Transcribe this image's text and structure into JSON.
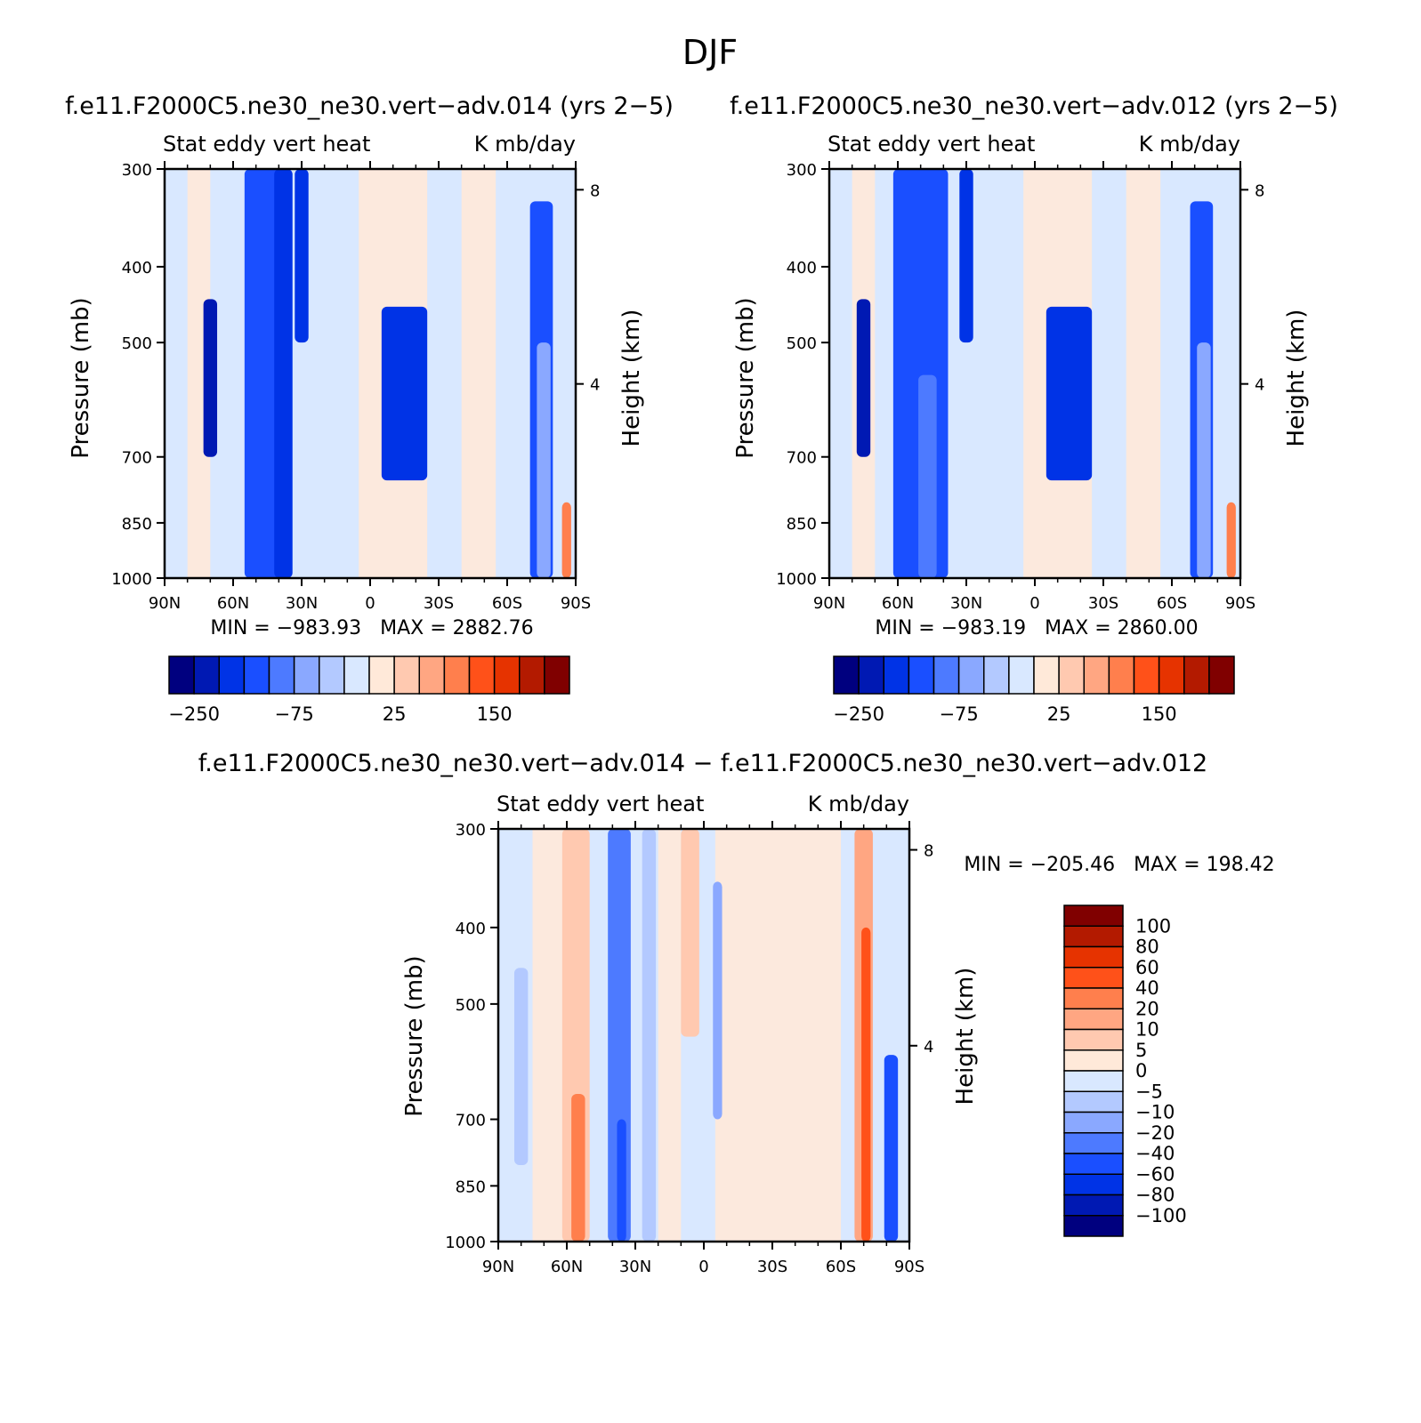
{
  "figure_title": "DJF",
  "palette": {
    "full": [
      "#00007f",
      "#0019b3",
      "#0033e6",
      "#1a4fff",
      "#4d7aff",
      "#8aa8ff",
      "#b3c9ff",
      "#d9e8ff",
      "#ffe9d9",
      "#ffc9b0",
      "#ffa682",
      "#ff7f4d",
      "#ff5119",
      "#e63300",
      "#b31a00",
      "#800000"
    ]
  },
  "chart_data": [
    {
      "id": "panel-014",
      "type": "heatmap",
      "title": "f.e11.F2000C5.ne30_ne30.vert−adv.014 (yrs 2−5)",
      "left_label": "Stat eddy vert heat",
      "right_label": "K mb/day",
      "ylabel": "Pressure (mb)",
      "ylabel_right": "Height (km)",
      "x_ticks": [
        "90N",
        "60N",
        "30N",
        "0",
        "30S",
        "60S",
        "90S"
      ],
      "x_values": [
        90,
        60,
        30,
        0,
        -30,
        -60,
        -90
      ],
      "xlim": [
        90,
        -90
      ],
      "y_ticks": [
        "300",
        "400",
        "500",
        "700",
        "850",
        "1000"
      ],
      "y_values": [
        300,
        400,
        500,
        700,
        850,
        1000
      ],
      "ylim": [
        300,
        1000
      ],
      "y_right_ticks": [
        "8",
        "4"
      ],
      "y_right_km": [
        8,
        4
      ],
      "stats": "MIN = −983.93   MAX = 2882.76",
      "colorbar_levels": [
        "−250",
        "−75",
        "25",
        "150"
      ],
      "features": [
        {
          "lat": 46,
          "w": 9,
          "p_top": 300,
          "p_bot": 1000,
          "v": 3
        },
        {
          "lat": 38,
          "w": 4,
          "p_top": 300,
          "p_bot": 1000,
          "v": 2
        },
        {
          "lat": 30,
          "w": 3,
          "p_top": 300,
          "p_bot": 500,
          "v": 2
        },
        {
          "lat": 70,
          "w": 3,
          "p_top": 440,
          "p_bot": 700,
          "v": 1
        },
        {
          "lat": -15,
          "w": 10,
          "p_top": 450,
          "p_bot": 750,
          "v": 2
        },
        {
          "lat": -75,
          "w": 5,
          "p_top": 330,
          "p_bot": 1000,
          "v": 3
        },
        {
          "lat": -76,
          "w": 3,
          "p_top": 500,
          "p_bot": 1000,
          "v": 5
        },
        {
          "lat": -86,
          "w": 2,
          "p_top": 800,
          "p_bot": 1000,
          "v": 11
        }
      ]
    },
    {
      "id": "panel-012",
      "type": "heatmap",
      "title": "f.e11.F2000C5.ne30_ne30.vert−adv.012 (yrs 2−5)",
      "left_label": "Stat eddy vert heat",
      "right_label": "K mb/day",
      "ylabel": "Pressure (mb)",
      "ylabel_right": "Height (km)",
      "x_ticks": [
        "90N",
        "60N",
        "30N",
        "0",
        "30S",
        "60S",
        "90S"
      ],
      "x_values": [
        90,
        60,
        30,
        0,
        -30,
        -60,
        -90
      ],
      "xlim": [
        90,
        -90
      ],
      "y_ticks": [
        "300",
        "400",
        "500",
        "700",
        "850",
        "1000"
      ],
      "y_values": [
        300,
        400,
        500,
        700,
        850,
        1000
      ],
      "ylim": [
        300,
        1000
      ],
      "y_right_ticks": [
        "8",
        "4"
      ],
      "y_right_km": [
        8,
        4
      ],
      "stats": "MIN = −983.19   MAX = 2860.00",
      "colorbar_levels": [
        "−250",
        "−75",
        "25",
        "150"
      ],
      "features": [
        {
          "lat": 50,
          "w": 12,
          "p_top": 300,
          "p_bot": 1000,
          "v": 3
        },
        {
          "lat": 47,
          "w": 4,
          "p_top": 550,
          "p_bot": 1000,
          "v": 4
        },
        {
          "lat": 30,
          "w": 3,
          "p_top": 300,
          "p_bot": 500,
          "v": 2
        },
        {
          "lat": 75,
          "w": 3,
          "p_top": 440,
          "p_bot": 700,
          "v": 1
        },
        {
          "lat": -15,
          "w": 10,
          "p_top": 450,
          "p_bot": 750,
          "v": 2
        },
        {
          "lat": -73,
          "w": 5,
          "p_top": 330,
          "p_bot": 1000,
          "v": 3
        },
        {
          "lat": -74,
          "w": 3,
          "p_top": 500,
          "p_bot": 1000,
          "v": 5
        },
        {
          "lat": -86,
          "w": 2,
          "p_top": 800,
          "p_bot": 1000,
          "v": 11
        }
      ]
    },
    {
      "id": "panel-diff",
      "type": "heatmap",
      "title": "f.e11.F2000C5.ne30_ne30.vert−adv.014 − f.e11.F2000C5.ne30_ne30.vert−adv.012",
      "left_label": "Stat eddy vert heat",
      "right_label": "K mb/day",
      "ylabel": "Pressure (mb)",
      "ylabel_right": "Height (km)",
      "x_ticks": [
        "90N",
        "60N",
        "30N",
        "0",
        "30S",
        "60S",
        "90S"
      ],
      "x_values": [
        90,
        60,
        30,
        0,
        -30,
        -60,
        -90
      ],
      "xlim": [
        90,
        -90
      ],
      "y_ticks": [
        "300",
        "400",
        "500",
        "700",
        "850",
        "1000"
      ],
      "y_values": [
        300,
        400,
        500,
        700,
        850,
        1000
      ],
      "ylim": [
        300,
        1000
      ],
      "y_right_ticks": [
        "8",
        "4"
      ],
      "y_right_km": [
        8,
        4
      ],
      "stats": "MIN = −205.46   MAX = 198.42",
      "colorbar_levels": [
        "100",
        "80",
        "60",
        "40",
        "20",
        "10",
        "5",
        "0",
        "−5",
        "−10",
        "−20",
        "−40",
        "−60",
        "−80",
        "−100"
      ],
      "features": [
        {
          "lat": 56,
          "w": 6,
          "p_top": 300,
          "p_bot": 1000,
          "v": 9
        },
        {
          "lat": 55,
          "w": 3,
          "p_top": 650,
          "p_bot": 1000,
          "v": 11
        },
        {
          "lat": 37,
          "w": 5,
          "p_top": 300,
          "p_bot": 1000,
          "v": 4
        },
        {
          "lat": 36,
          "w": 2,
          "p_top": 700,
          "p_bot": 1000,
          "v": 3
        },
        {
          "lat": 6,
          "w": 4,
          "p_top": 300,
          "p_bot": 550,
          "v": 9
        },
        {
          "lat": 24,
          "w": 3,
          "p_top": 300,
          "p_bot": 1000,
          "v": 6
        },
        {
          "lat": -6,
          "w": 2,
          "p_top": 350,
          "p_bot": 700,
          "v": 5
        },
        {
          "lat": -70,
          "w": 4,
          "p_top": 300,
          "p_bot": 1000,
          "v": 10
        },
        {
          "lat": -71,
          "w": 2,
          "p_top": 400,
          "p_bot": 1000,
          "v": 12
        },
        {
          "lat": -82,
          "w": 3,
          "p_top": 580,
          "p_bot": 1000,
          "v": 3
        },
        {
          "lat": 80,
          "w": 3,
          "p_top": 450,
          "p_bot": 800,
          "v": 6
        }
      ]
    }
  ]
}
